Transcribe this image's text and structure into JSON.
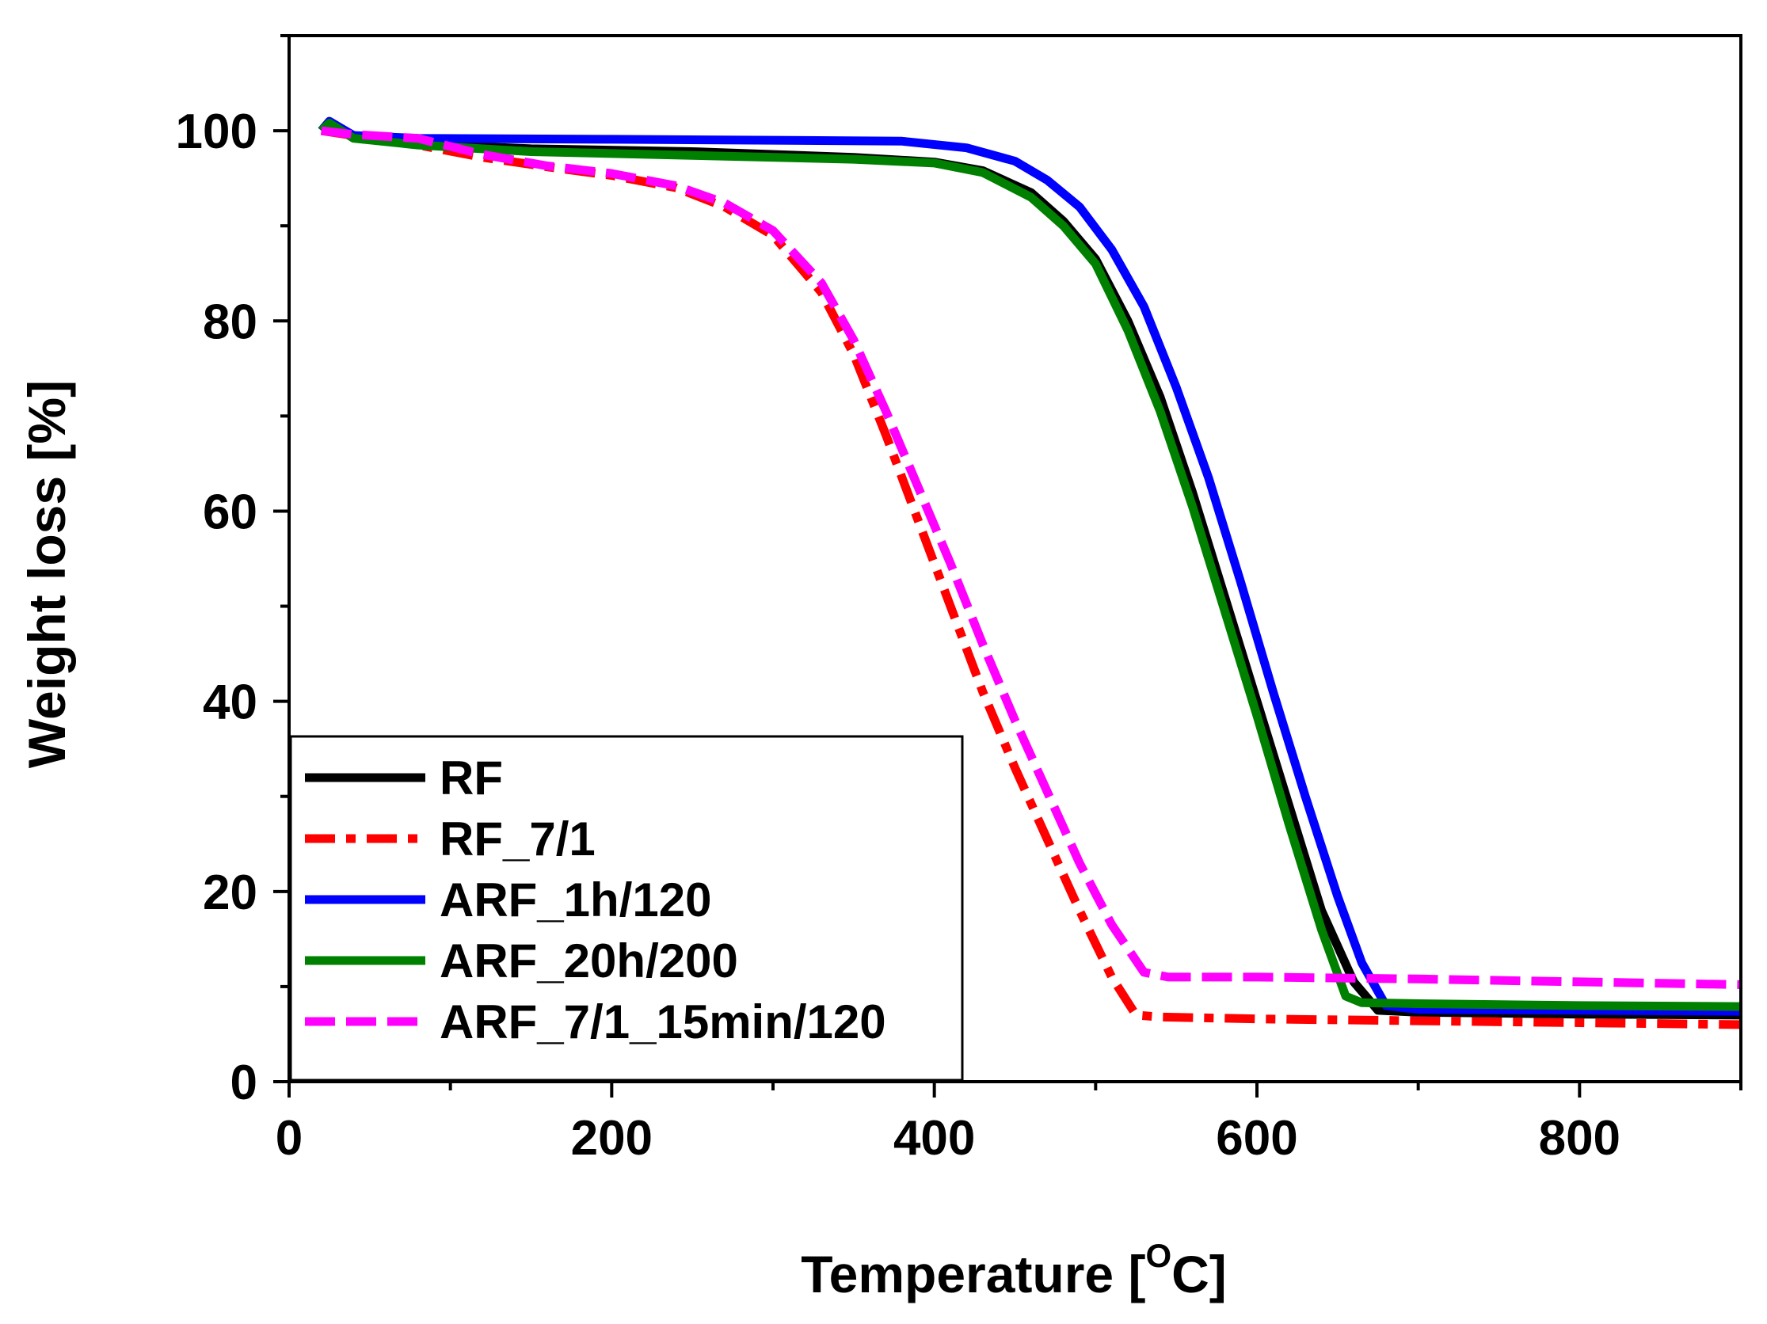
{
  "chart_data": {
    "type": "line",
    "title": "",
    "xlabel": "Temperature [",
    "xlabel_sup": "O",
    "xlabel_tail": "C]",
    "ylabel": "Weight loss [%]",
    "xlim": [
      0,
      900
    ],
    "ylim": [
      0,
      110
    ],
    "xticks": [
      0,
      200,
      400,
      600,
      800
    ],
    "xtick_labels": [
      "0",
      "200",
      "400",
      "600",
      "800"
    ],
    "xminor": [
      100,
      300,
      500,
      700,
      900
    ],
    "yticks": [
      0,
      20,
      40,
      60,
      80,
      100
    ],
    "ytick_labels": [
      "0",
      "20",
      "40",
      "60",
      "80",
      "100"
    ],
    "yminor": [
      10,
      30,
      50,
      70,
      90,
      110
    ],
    "grid": false,
    "legend_position": "bottom-left",
    "series": [
      {
        "name": "RF",
        "color": "#000000",
        "dash": "solid",
        "points": [
          [
            20,
            100
          ],
          [
            25,
            100.8
          ],
          [
            40,
            99.5
          ],
          [
            80,
            98.6
          ],
          [
            150,
            98.1
          ],
          [
            250,
            97.8
          ],
          [
            350,
            97.2
          ],
          [
            400,
            96.7
          ],
          [
            430,
            95.8
          ],
          [
            460,
            93.5
          ],
          [
            480,
            90.5
          ],
          [
            500,
            86.5
          ],
          [
            520,
            80
          ],
          [
            540,
            72
          ],
          [
            560,
            62
          ],
          [
            580,
            51
          ],
          [
            600,
            40
          ],
          [
            620,
            29
          ],
          [
            640,
            18
          ],
          [
            660,
            10.5
          ],
          [
            675,
            7.5
          ],
          [
            700,
            7.3
          ],
          [
            800,
            7.1
          ],
          [
            900,
            7.0
          ]
        ]
      },
      {
        "name": "RF_7/1",
        "color": "#ff0000",
        "dash": "dashdot",
        "points": [
          [
            20,
            100
          ],
          [
            40,
            99.5
          ],
          [
            80,
            98.5
          ],
          [
            120,
            97.2
          ],
          [
            160,
            96.2
          ],
          [
            200,
            95.3
          ],
          [
            240,
            94
          ],
          [
            270,
            92
          ],
          [
            300,
            89
          ],
          [
            330,
            83
          ],
          [
            350,
            76.5
          ],
          [
            370,
            68
          ],
          [
            390,
            59
          ],
          [
            410,
            50
          ],
          [
            430,
            41
          ],
          [
            450,
            33
          ],
          [
            470,
            25.5
          ],
          [
            490,
            18
          ],
          [
            510,
            11
          ],
          [
            525,
            7
          ],
          [
            540,
            6.8
          ],
          [
            600,
            6.6
          ],
          [
            700,
            6.4
          ],
          [
            800,
            6.2
          ],
          [
            900,
            6.0
          ]
        ]
      },
      {
        "name": "ARF_1h/120",
        "color": "#0000ff",
        "dash": "solid",
        "points": [
          [
            20,
            100
          ],
          [
            25,
            101
          ],
          [
            40,
            99.5
          ],
          [
            80,
            99.2
          ],
          [
            200,
            99.1
          ],
          [
            300,
            99
          ],
          [
            380,
            98.9
          ],
          [
            420,
            98.2
          ],
          [
            450,
            96.8
          ],
          [
            470,
            94.8
          ],
          [
            490,
            92
          ],
          [
            510,
            87.5
          ],
          [
            530,
            81.5
          ],
          [
            550,
            73
          ],
          [
            570,
            63.5
          ],
          [
            590,
            52.5
          ],
          [
            610,
            41
          ],
          [
            630,
            30
          ],
          [
            650,
            19.5
          ],
          [
            665,
            12.5
          ],
          [
            680,
            8
          ],
          [
            700,
            7.6
          ],
          [
            800,
            7.5
          ],
          [
            900,
            7.4
          ]
        ]
      },
      {
        "name": "ARF_20h/200",
        "color": "#008000",
        "dash": "solid",
        "points": [
          [
            20,
            100
          ],
          [
            25,
            100.8
          ],
          [
            40,
            99.2
          ],
          [
            80,
            98.5
          ],
          [
            150,
            97.8
          ],
          [
            250,
            97.4
          ],
          [
            350,
            97
          ],
          [
            400,
            96.6
          ],
          [
            430,
            95.6
          ],
          [
            460,
            93
          ],
          [
            480,
            90
          ],
          [
            500,
            86
          ],
          [
            520,
            79
          ],
          [
            540,
            70.5
          ],
          [
            560,
            60.5
          ],
          [
            580,
            49.5
          ],
          [
            600,
            38.5
          ],
          [
            620,
            27
          ],
          [
            640,
            16
          ],
          [
            655,
            9
          ],
          [
            665,
            8.3
          ],
          [
            700,
            8.2
          ],
          [
            800,
            8.0
          ],
          [
            900,
            7.9
          ]
        ]
      },
      {
        "name": "ARF_7/1_15min/120",
        "color": "#ff00ff",
        "dash": "dash",
        "points": [
          [
            20,
            100
          ],
          [
            40,
            99.6
          ],
          [
            80,
            99.2
          ],
          [
            120,
            97.5
          ],
          [
            160,
            96.3
          ],
          [
            200,
            95.5
          ],
          [
            240,
            94.2
          ],
          [
            270,
            92.4
          ],
          [
            300,
            89.5
          ],
          [
            330,
            84
          ],
          [
            350,
            78
          ],
          [
            370,
            70.5
          ],
          [
            390,
            62.5
          ],
          [
            410,
            54.5
          ],
          [
            430,
            46
          ],
          [
            450,
            38
          ],
          [
            470,
            30.5
          ],
          [
            490,
            23
          ],
          [
            510,
            16.5
          ],
          [
            530,
            11.5
          ],
          [
            545,
            11
          ],
          [
            600,
            11
          ],
          [
            700,
            10.8
          ],
          [
            800,
            10.5
          ],
          [
            900,
            10.2
          ]
        ]
      }
    ]
  }
}
